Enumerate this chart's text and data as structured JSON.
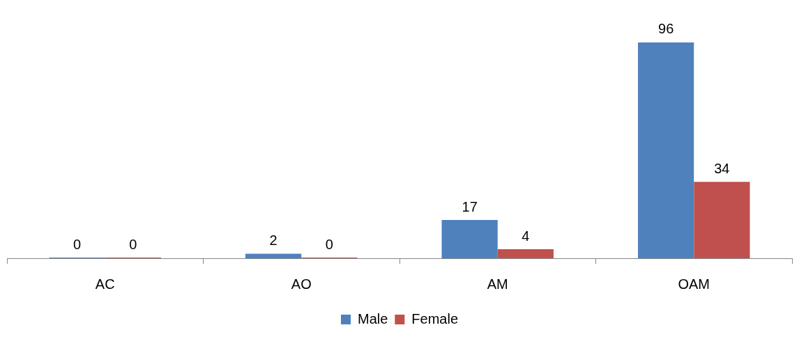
{
  "chart_data": {
    "type": "bar",
    "categories": [
      "AC",
      "AO",
      "AM",
      "OAM"
    ],
    "series": [
      {
        "name": "Male",
        "color": "#4f81bd",
        "values": [
          0,
          2,
          17,
          96
        ]
      },
      {
        "name": "Female",
        "color": "#c0504d",
        "values": [
          0,
          0,
          4,
          34
        ]
      }
    ],
    "data_labels": true,
    "legend": "bottom",
    "grid": false
  }
}
